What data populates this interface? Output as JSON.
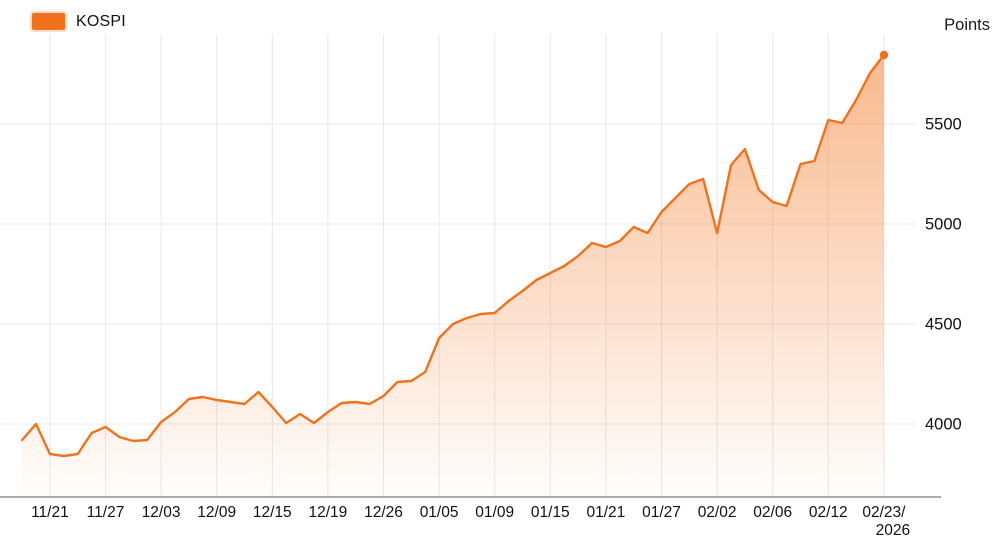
{
  "legend": {
    "label": "KOSPI"
  },
  "y_axis": {
    "unit_label": "Points"
  },
  "colors": {
    "line": "#f2721b",
    "fill_top": "rgba(243,115,28,0.50)",
    "fill_bottom": "rgba(243,115,28,0.01)",
    "grid": "#e8e8e8",
    "axis": "#7a7a7a",
    "text": "#111111"
  },
  "chart_data": {
    "type": "area",
    "title": "",
    "xlabel": "",
    "ylabel": "Points",
    "legend_entries": [
      "KOSPI"
    ],
    "legend_position": "top-left",
    "grid": true,
    "ylim": [
      3635,
      5945
    ],
    "y_ticks": [
      4000,
      4500,
      5000,
      5500
    ],
    "x_tick_labels": [
      "11/21",
      "11/27",
      "12/03",
      "12/09",
      "12/15",
      "12/19",
      "12/26",
      "01/05",
      "01/09",
      "01/15",
      "01/21",
      "01/27",
      "02/02",
      "02/06",
      "02/12",
      "02/23/\n2026"
    ],
    "x_tick_every_n_points": 4,
    "x_tick_first_point_index": 2,
    "series": [
      {
        "name": "KOSPI",
        "x": [
          "11/19",
          "11/20",
          "11/21",
          "11/24",
          "11/25",
          "11/26",
          "11/27",
          "11/28",
          "12/01",
          "12/02",
          "12/03",
          "12/04",
          "12/05",
          "12/08",
          "12/09",
          "12/10",
          "12/11",
          "12/12",
          "12/15",
          "12/16",
          "12/17",
          "12/18",
          "12/19",
          "12/22",
          "12/23",
          "12/24",
          "12/26",
          "12/29",
          "12/30",
          "01/02",
          "01/05",
          "01/06",
          "01/07",
          "01/08",
          "01/09",
          "01/12",
          "01/13",
          "01/14",
          "01/15",
          "01/16",
          "01/19",
          "01/20",
          "01/21",
          "01/22",
          "01/23",
          "01/26",
          "01/27",
          "01/28",
          "01/29",
          "01/30",
          "02/02",
          "02/03",
          "02/04",
          "02/05",
          "02/06",
          "02/09",
          "02/10",
          "02/11",
          "02/12",
          "02/13",
          "02/19",
          "02/20",
          "02/23"
        ],
        "values": [
          3920,
          4000,
          3850,
          3840,
          3850,
          3955,
          3985,
          3935,
          3915,
          3920,
          4010,
          4060,
          4125,
          4135,
          4120,
          4110,
          4100,
          4160,
          4085,
          4005,
          4050,
          4005,
          4060,
          4105,
          4110,
          4100,
          4140,
          4210,
          4215,
          4260,
          4430,
          4500,
          4530,
          4550,
          4555,
          4615,
          4665,
          4720,
          4755,
          4790,
          4840,
          4905,
          4885,
          4915,
          4985,
          4955,
          5060,
          5130,
          5200,
          5225,
          4955,
          5295,
          5375,
          5170,
          5110,
          5090,
          5300,
          5315,
          5520,
          5505,
          5620,
          5755,
          5845
        ]
      }
    ],
    "end_point_value": 5845,
    "end_point_marker": true
  }
}
